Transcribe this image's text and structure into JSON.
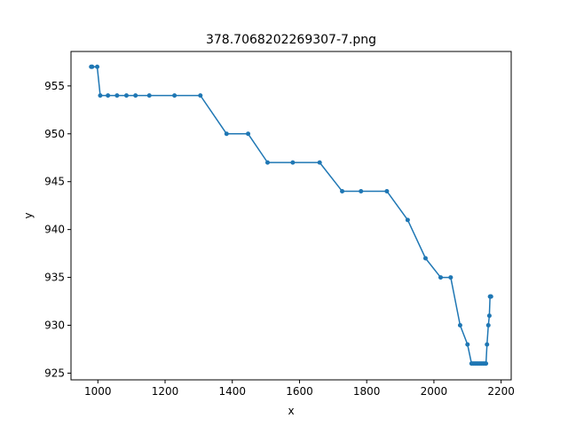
{
  "chart_data": {
    "type": "line",
    "title": "378.7068202269307-7.png",
    "xlabel": "x",
    "ylabel": "y",
    "xlim": [
      920,
      2230
    ],
    "ylim": [
      924.3,
      958.6
    ],
    "xticks": [
      1000,
      1200,
      1400,
      1600,
      1800,
      2000,
      2200
    ],
    "xtick_labels": [
      "1000",
      "1200",
      "1400",
      "1600",
      "1800",
      "2000",
      "2200"
    ],
    "yticks": [
      925,
      930,
      935,
      940,
      945,
      950,
      955
    ],
    "ytick_labels": [
      "925",
      "930",
      "935",
      "940",
      "945",
      "950",
      "955"
    ],
    "grid": false,
    "legend": "none",
    "series": [
      {
        "color": "#1f77b4",
        "marker": "circle",
        "x": [
          980,
          983,
          998,
          1007,
          1030,
          1057,
          1085,
          1112,
          1153,
          1228,
          1305,
          1383,
          1447,
          1505,
          1580,
          1660,
          1727,
          1783,
          1860,
          1922,
          1975,
          2020,
          2050,
          2078,
          2100,
          2112,
          2117,
          2122,
          2127,
          2132,
          2137,
          2142,
          2147,
          2152,
          2155,
          2158,
          2162,
          2165,
          2167,
          2169,
          2170
        ],
        "y": [
          957,
          957,
          957,
          954,
          954,
          954,
          954,
          954,
          954,
          954,
          954,
          950,
          950,
          947,
          947,
          947,
          944,
          944,
          944,
          941,
          937,
          935,
          935,
          930,
          928,
          926,
          926,
          926,
          926,
          926,
          926,
          926,
          926,
          926,
          926,
          928,
          930,
          931,
          933,
          933,
          933
        ]
      }
    ]
  }
}
